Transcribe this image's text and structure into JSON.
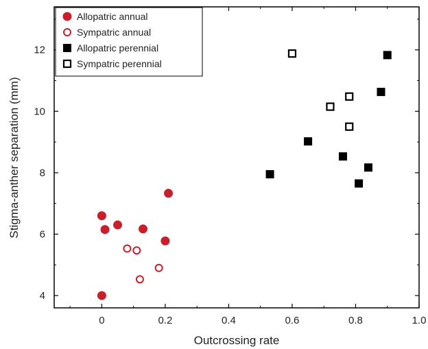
{
  "chart_data": {
    "type": "scatter",
    "xlabel": "Outcrossing rate",
    "ylabel": "Stigma-anther separation (mm)",
    "xlim": [
      -0.15,
      1.0
    ],
    "ylim": [
      3.6,
      13.4
    ],
    "x_ticks": [
      0,
      0.2,
      0.4,
      0.6,
      0.8,
      1.0
    ],
    "x_tick_labels": [
      "0",
      "0.2",
      "0.4",
      "0.6",
      "0.8",
      "1.0"
    ],
    "y_ticks": [
      4,
      6,
      8,
      10,
      12
    ],
    "y_tick_labels": [
      "4",
      "6",
      "8",
      "10",
      "12"
    ],
    "grid": false,
    "legend_position": "top-left",
    "series": [
      {
        "name": "Allopatric annual",
        "marker": "circle-filled",
        "color": "#c8202a",
        "points": [
          {
            "x": 0.0,
            "y": 6.6
          },
          {
            "x": 0.01,
            "y": 6.15
          },
          {
            "x": 0.05,
            "y": 6.3
          },
          {
            "x": 0.13,
            "y": 6.17
          },
          {
            "x": 0.2,
            "y": 5.78
          },
          {
            "x": 0.21,
            "y": 7.33
          },
          {
            "x": 0.0,
            "y": 4.0
          }
        ]
      },
      {
        "name": "Sympatric annual",
        "marker": "circle-open",
        "color": "#c8202a",
        "points": [
          {
            "x": 0.08,
            "y": 5.53
          },
          {
            "x": 0.11,
            "y": 5.47
          },
          {
            "x": 0.12,
            "y": 4.53
          },
          {
            "x": 0.18,
            "y": 4.9
          }
        ]
      },
      {
        "name": "Allopatric perennial",
        "marker": "square-filled",
        "color": "#000000",
        "points": [
          {
            "x": 0.53,
            "y": 7.95
          },
          {
            "x": 0.65,
            "y": 9.02
          },
          {
            "x": 0.76,
            "y": 8.53
          },
          {
            "x": 0.81,
            "y": 7.65
          },
          {
            "x": 0.84,
            "y": 8.17
          },
          {
            "x": 0.88,
            "y": 10.63
          },
          {
            "x": 0.9,
            "y": 11.83
          }
        ]
      },
      {
        "name": "Sympatric perennial",
        "marker": "square-open",
        "color": "#000000",
        "points": [
          {
            "x": 0.6,
            "y": 11.88
          },
          {
            "x": 0.72,
            "y": 10.15
          },
          {
            "x": 0.78,
            "y": 10.48
          },
          {
            "x": 0.78,
            "y": 9.5
          }
        ]
      }
    ]
  }
}
